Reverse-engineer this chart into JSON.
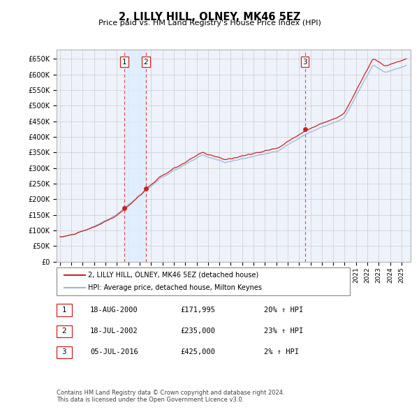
{
  "title": "2, LILLY HILL, OLNEY, MK46 5EZ",
  "subtitle": "Price paid vs. HM Land Registry's House Price Index (HPI)",
  "ylim": [
    0,
    680000
  ],
  "yticks": [
    0,
    50000,
    100000,
    150000,
    200000,
    250000,
    300000,
    350000,
    400000,
    450000,
    500000,
    550000,
    600000,
    650000
  ],
  "ytick_labels": [
    "£0",
    "£50K",
    "£100K",
    "£150K",
    "£200K",
    "£250K",
    "£300K",
    "£350K",
    "£400K",
    "£450K",
    "£500K",
    "£550K",
    "£600K",
    "£650K"
  ],
  "hpi_color": "#9ab8d8",
  "price_color": "#cc2222",
  "sale_marker_color": "#cc2222",
  "vline_color": "#dd4444",
  "shade_color": "#ddeeff",
  "grid_color": "#cccccc",
  "xlim_left": 1994.7,
  "xlim_right": 2025.8,
  "sales": [
    {
      "label": "1",
      "date_num": 2000.63,
      "price": 171995
    },
    {
      "label": "2",
      "date_num": 2002.54,
      "price": 235000
    },
    {
      "label": "3",
      "date_num": 2016.51,
      "price": 425000
    }
  ],
  "legend_address": "2, LILLY HILL, OLNEY, MK46 5EZ (detached house)",
  "legend_hpi": "HPI: Average price, detached house, Milton Keynes",
  "table_rows": [
    {
      "num": "1",
      "date": "18-AUG-2000",
      "price": "£171,995",
      "change": "20% ↑ HPI"
    },
    {
      "num": "2",
      "date": "18-JUL-2002",
      "price": "£235,000",
      "change": "23% ↑ HPI"
    },
    {
      "num": "3",
      "date": "05-JUL-2016",
      "price": "£425,000",
      "change": "2% ↑ HPI"
    }
  ],
  "footnote": "Contains HM Land Registry data © Crown copyright and database right 2024.\nThis data is licensed under the Open Government Licence v3.0.",
  "background_color": "#ffffff",
  "plot_bg_color": "#eef2fa"
}
